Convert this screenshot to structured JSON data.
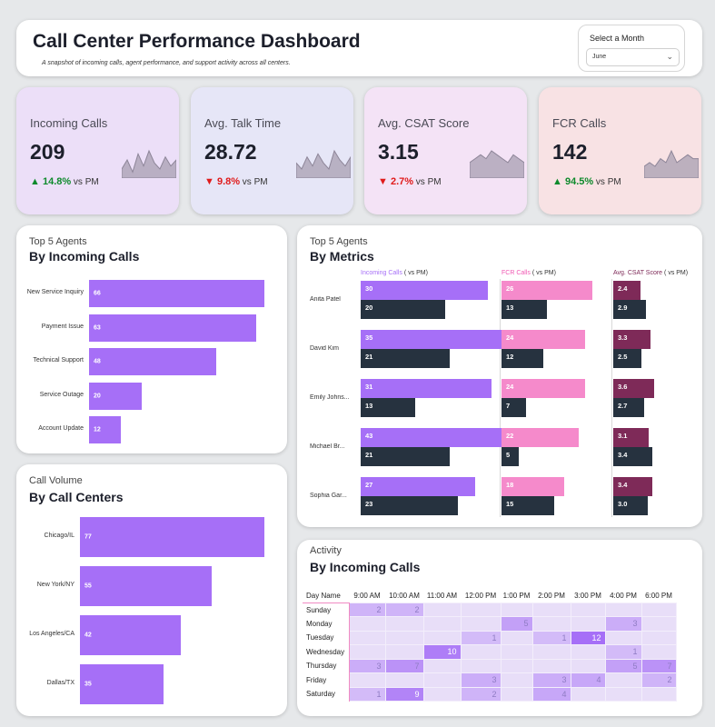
{
  "header": {
    "title": "Call Center Performance Dashboard",
    "subtitle": "A snapshot of incoming calls, agent performance, and support activity across all centers.",
    "month_label": "Select a Month",
    "month_value": "June"
  },
  "kpis": [
    {
      "title": "Incoming Calls",
      "value": "209",
      "arrow": "▲",
      "delta": "14.8%",
      "vs": "vs PM",
      "dir": "up",
      "bg": "#ecdff8",
      "spark": [
        3,
        6,
        2,
        8,
        4,
        9,
        5,
        3,
        7,
        4,
        6
      ]
    },
    {
      "title": "Avg. Talk Time",
      "value": "28.72",
      "arrow": "▼",
      "delta": "9.8%",
      "vs": "vs PM",
      "dir": "down",
      "bg": "#e6e6f7",
      "spark": [
        5,
        3,
        7,
        4,
        8,
        5,
        3,
        9,
        6,
        4,
        7
      ]
    },
    {
      "title": "Avg. CSAT Score",
      "value": "3.15",
      "arrow": "▼",
      "delta": "2.7%",
      "vs": "vs PM",
      "dir": "down",
      "bg": "#f4e3f6",
      "spark": [
        4,
        5,
        6,
        5,
        7,
        6,
        5,
        4,
        6,
        5,
        4
      ]
    },
    {
      "title": "FCR Calls",
      "value": "142",
      "arrow": "▲",
      "delta": "94.5%",
      "vs": "vs PM",
      "dir": "up",
      "bg": "#f8e2e4",
      "spark": [
        3,
        4,
        3,
        5,
        4,
        7,
        4,
        5,
        6,
        5,
        5
      ]
    }
  ],
  "agents_panel": {
    "title_small": "Top 5 Agents",
    "title": "By Incoming Calls",
    "chart_data": {
      "type": "bar",
      "orientation": "horizontal",
      "categories": [
        "New Service Inquiry",
        "Payment Issue",
        "Technical Support",
        "Service Outage",
        "Account Update"
      ],
      "values": [
        66,
        63,
        48,
        20,
        12
      ]
    }
  },
  "centers_panel": {
    "title_small": "Call Volume",
    "title": "By Call Centers",
    "chart_data": {
      "type": "bar",
      "orientation": "horizontal",
      "categories": [
        "Chicago/IL",
        "New York/NY",
        "Los Angeles/CA",
        "Dallas/TX"
      ],
      "values": [
        77,
        55,
        42,
        35
      ]
    }
  },
  "metrics_panel": {
    "title_small": "Top 5 Agents",
    "title": "By Metrics",
    "headers": {
      "incoming": "Incoming Calls",
      "fcr": "FCR Calls",
      "csat": "Avg. CSAT Score",
      "suffix": "( vs PM)"
    },
    "chart_data": {
      "type": "bar",
      "orientation": "horizontal",
      "categories": [
        "Anita Patel",
        "David Kim",
        "Emily Johns...",
        "Michael Br...",
        "Sophia Gar..."
      ],
      "series": [
        {
          "name": "Incoming Calls",
          "values": [
            30,
            35,
            31,
            43,
            27
          ]
        },
        {
          "name": "Incoming Calls PM",
          "values": [
            20,
            21,
            13,
            21,
            23
          ]
        },
        {
          "name": "FCR Calls",
          "values": [
            26,
            24,
            24,
            22,
            18
          ]
        },
        {
          "name": "FCR Calls PM",
          "values": [
            13,
            12,
            7,
            5,
            15
          ]
        },
        {
          "name": "Avg. CSAT Score",
          "values": [
            "2.4",
            "3.3",
            "3.6",
            "3.1",
            "3.4"
          ]
        },
        {
          "name": "Avg. CSAT Score PM",
          "values": [
            "2.9",
            "2.5",
            "2.7",
            "3.4",
            "3.0"
          ]
        }
      ]
    }
  },
  "activity_panel": {
    "title_small": "Activity",
    "title": "By Incoming Calls",
    "row_header": "Day Name",
    "chart_data": {
      "type": "heatmap",
      "columns": [
        "9:00 AM",
        "10:00 AM",
        "11:00 AM",
        "12:00 PM",
        "1:00 PM",
        "2:00 PM",
        "3:00 PM",
        "4:00 PM",
        "6:00 PM"
      ],
      "rows": [
        "Sunday",
        "Monday",
        "Tuesday",
        "Wednesday",
        "Thursday",
        "Friday",
        "Saturday"
      ],
      "values": [
        [
          2,
          2,
          null,
          null,
          null,
          null,
          null,
          null,
          null
        ],
        [
          null,
          null,
          null,
          null,
          5,
          null,
          null,
          3,
          null
        ],
        [
          null,
          null,
          null,
          1,
          null,
          1,
          12,
          null,
          null
        ],
        [
          null,
          null,
          10,
          null,
          null,
          null,
          null,
          1,
          null
        ],
        [
          3,
          7,
          null,
          null,
          null,
          null,
          null,
          5,
          7
        ],
        [
          null,
          null,
          null,
          3,
          null,
          3,
          4,
          null,
          2
        ],
        [
          1,
          9,
          null,
          2,
          null,
          4,
          null,
          null,
          null
        ]
      ]
    }
  }
}
